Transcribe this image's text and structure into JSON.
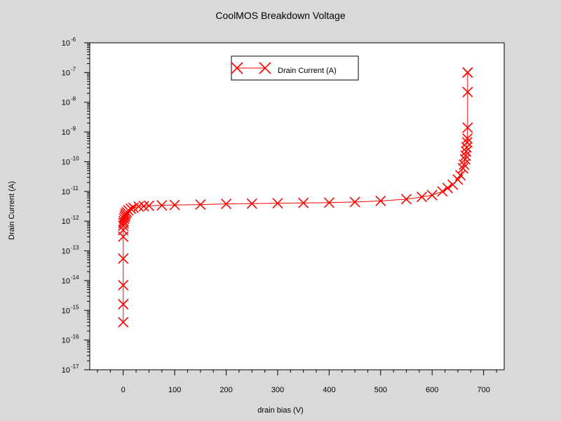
{
  "chart_data": {
    "type": "scatter",
    "title": "CoolMOS Breakdown Voltage",
    "xlabel": "drain bias (V)",
    "ylabel": "Drain Current (A)",
    "xlim": [
      -65,
      740
    ],
    "xticks": [
      0,
      100,
      200,
      300,
      400,
      500,
      600,
      700
    ],
    "y_scale": "log",
    "ylim_exponent": [
      -17,
      -6
    ],
    "ytick_exponents": [
      -6,
      -7,
      -8,
      -9,
      -10,
      -11,
      -12,
      -13,
      -14,
      -15,
      -16,
      -17
    ],
    "grid": false,
    "legend_position": "top-center",
    "series": [
      {
        "name": "Drain Current (A)",
        "color": "#ff0000",
        "marker": "x",
        "line": true,
        "x": [
          0,
          0,
          0,
          0,
          0,
          0,
          0,
          0.5,
          1,
          2,
          3,
          4,
          5,
          7,
          10,
          15,
          20,
          30,
          40,
          50,
          75,
          100,
          150,
          200,
          250,
          300,
          350,
          400,
          450,
          500,
          550,
          580,
          600,
          620,
          630,
          640,
          650,
          655,
          660,
          662,
          664,
          665,
          666,
          667,
          668,
          668.5,
          669,
          669,
          669,
          669
        ],
        "y": [
          4e-16,
          1.6e-15,
          7e-15,
          5.5e-14,
          3e-13,
          5e-13,
          7e-13,
          8.5e-13,
          1e-12,
          1.2e-12,
          1.4e-12,
          1.6e-12,
          1.8e-12,
          2e-12,
          2.3e-12,
          2.6e-12,
          2.8e-12,
          3.1e-12,
          3.2e-12,
          3.3e-12,
          3.4e-12,
          3.5e-12,
          3.6e-12,
          3.8e-12,
          3.9e-12,
          4e-12,
          4.1e-12,
          4.2e-12,
          4.4e-12,
          4.8e-12,
          5.5e-12,
          6.5e-12,
          7.5e-12,
          1e-11,
          1.3e-11,
          1.7e-11,
          2.5e-11,
          3.5e-11,
          6e-11,
          8e-11,
          1.2e-10,
          1.6e-10,
          2.2e-10,
          3e-10,
          4.5e-10,
          6e-10,
          1.4e-09,
          2.2e-08,
          1e-07,
          1e-07
        ]
      }
    ]
  }
}
